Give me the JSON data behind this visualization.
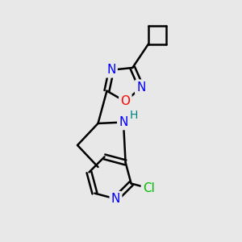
{
  "bg_color": "#e8e8e8",
  "bond_color": "#000000",
  "bond_width": 1.8,
  "atom_colors": {
    "N": "#0000ff",
    "O": "#ff0000",
    "Cl": "#00bb00",
    "H": "#008080",
    "C": "#000000"
  },
  "font_size": 10,
  "fig_size": [
    3.0,
    3.0
  ],
  "dpi": 100
}
